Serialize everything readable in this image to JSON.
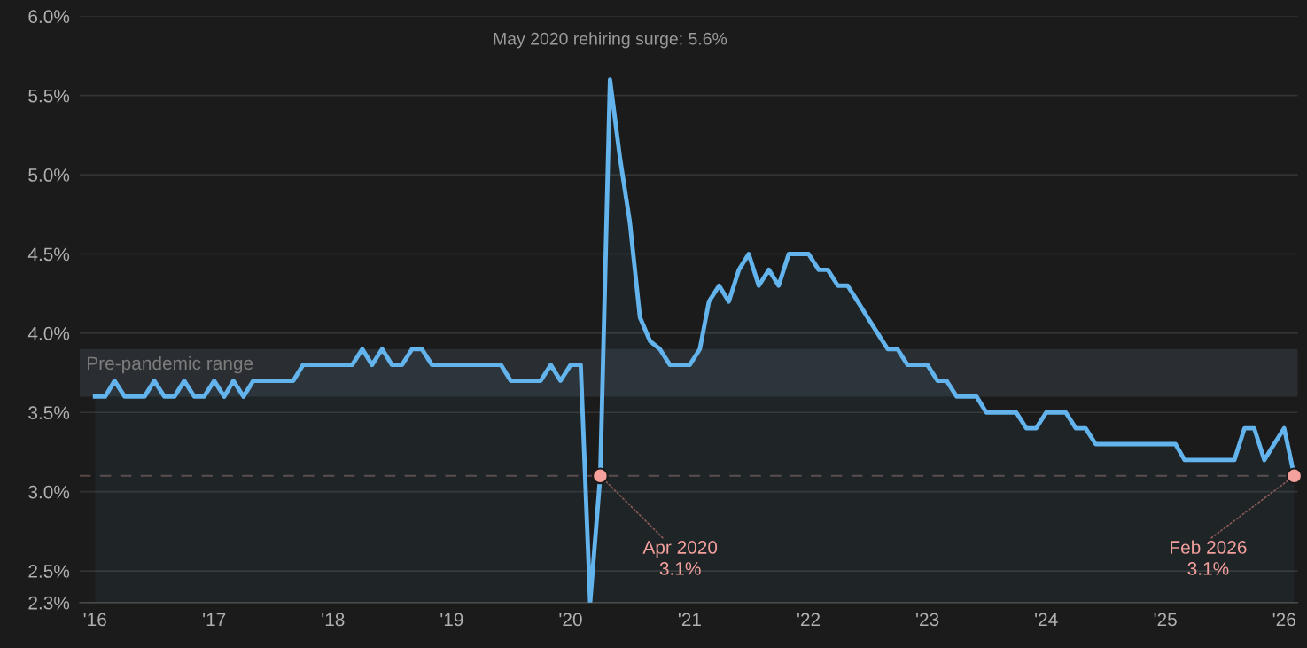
{
  "chart_data": {
    "type": "area",
    "x": [
      "2016-01",
      "2016-02",
      "2016-03",
      "2016-04",
      "2016-05",
      "2016-06",
      "2016-07",
      "2016-08",
      "2016-09",
      "2016-10",
      "2016-11",
      "2016-12",
      "2017-01",
      "2017-02",
      "2017-03",
      "2017-04",
      "2017-05",
      "2017-06",
      "2017-07",
      "2017-08",
      "2017-09",
      "2017-10",
      "2017-11",
      "2017-12",
      "2018-01",
      "2018-02",
      "2018-03",
      "2018-04",
      "2018-05",
      "2018-06",
      "2018-07",
      "2018-08",
      "2018-09",
      "2018-10",
      "2018-11",
      "2018-12",
      "2019-01",
      "2019-02",
      "2019-03",
      "2019-04",
      "2019-05",
      "2019-06",
      "2019-07",
      "2019-08",
      "2019-09",
      "2019-10",
      "2019-11",
      "2019-12",
      "2020-01",
      "2020-02",
      "2020-03",
      "2020-04",
      "2020-05",
      "2020-06",
      "2020-07",
      "2020-08",
      "2020-09",
      "2020-10",
      "2020-11",
      "2020-12",
      "2021-01",
      "2021-02",
      "2021-03",
      "2021-04",
      "2021-05",
      "2021-06",
      "2021-07",
      "2021-08",
      "2021-09",
      "2021-10",
      "2021-11",
      "2021-12",
      "2022-01",
      "2022-02",
      "2022-03",
      "2022-04",
      "2022-05",
      "2022-06",
      "2022-07",
      "2022-08",
      "2022-09",
      "2022-10",
      "2022-11",
      "2022-12",
      "2023-01",
      "2023-02",
      "2023-03",
      "2023-04",
      "2023-05",
      "2023-06",
      "2023-07",
      "2023-08",
      "2023-09",
      "2023-10",
      "2023-11",
      "2023-12",
      "2024-01",
      "2024-02",
      "2024-03",
      "2024-04",
      "2024-05",
      "2024-06",
      "2024-07",
      "2024-08",
      "2024-09",
      "2024-10",
      "2024-11",
      "2024-12",
      "2025-01",
      "2025-02",
      "2025-03",
      "2025-04",
      "2025-05",
      "2025-06",
      "2025-07",
      "2025-08",
      "2025-09",
      "2025-10",
      "2025-11",
      "2025-12",
      "2026-01",
      "2026-02"
    ],
    "series": [
      {
        "color": "#63b3ed",
        "values": [
          3.6,
          3.6,
          3.7,
          3.6,
          3.6,
          3.6,
          3.7,
          3.6,
          3.6,
          3.7,
          3.6,
          3.6,
          3.7,
          3.6,
          3.7,
          3.6,
          3.7,
          3.7,
          3.7,
          3.7,
          3.7,
          3.8,
          3.8,
          3.8,
          3.8,
          3.8,
          3.8,
          3.9,
          3.8,
          3.9,
          3.8,
          3.8,
          3.9,
          3.9,
          3.8,
          3.8,
          3.8,
          3.8,
          3.8,
          3.8,
          3.8,
          3.8,
          3.7,
          3.7,
          3.7,
          3.7,
          3.8,
          3.7,
          3.8,
          3.8,
          2.3,
          3.1,
          5.6,
          5.1,
          4.7,
          4.1,
          3.95,
          3.9,
          3.8,
          3.8,
          3.8,
          3.9,
          4.2,
          4.3,
          4.2,
          4.4,
          4.5,
          4.3,
          4.4,
          4.3,
          4.5,
          4.5,
          4.5,
          4.4,
          4.4,
          4.3,
          4.3,
          4.2,
          4.1,
          4.0,
          3.9,
          3.9,
          3.8,
          3.8,
          3.8,
          3.7,
          3.7,
          3.6,
          3.6,
          3.6,
          3.5,
          3.5,
          3.5,
          3.5,
          3.4,
          3.4,
          3.5,
          3.5,
          3.5,
          3.4,
          3.4,
          3.3,
          3.3,
          3.3,
          3.3,
          3.3,
          3.3,
          3.3,
          3.3,
          3.3,
          3.2,
          3.2,
          3.2,
          3.2,
          3.2,
          3.2,
          3.4,
          3.4,
          3.2,
          3.3,
          3.4,
          3.1
        ]
      }
    ],
    "xlim": [
      "2015-11-15",
      "2026-02-12"
    ],
    "xticks": [
      {
        "value": "2016-01-01",
        "label": "'16"
      },
      {
        "value": "2017-01-01",
        "label": "'17"
      },
      {
        "value": "2018-01-01",
        "label": "'18"
      },
      {
        "value": "2019-01-01",
        "label": "'19"
      },
      {
        "value": "2020-01-01",
        "label": "'20"
      },
      {
        "value": "2021-01-01",
        "label": "'21"
      },
      {
        "value": "2022-01-01",
        "label": "'22"
      },
      {
        "value": "2023-01-01",
        "label": "'23"
      },
      {
        "value": "2024-01-01",
        "label": "'24"
      },
      {
        "value": "2025-01-01",
        "label": "'25"
      },
      {
        "value": "2026-01-01",
        "label": "'26"
      }
    ],
    "ylim": [
      2.3,
      6.0
    ],
    "yticks": [
      {
        "value": 2.3,
        "label": "2.3%"
      },
      {
        "value": 2.5,
        "label": "2.5%"
      },
      {
        "value": 3.0,
        "label": "3.0%"
      },
      {
        "value": 3.5,
        "label": "3.5%"
      },
      {
        "value": 4.0,
        "label": "4.0%"
      },
      {
        "value": 4.5,
        "label": "4.5%"
      },
      {
        "value": 5.0,
        "label": "5.0%"
      },
      {
        "value": 5.5,
        "label": "5.5%"
      },
      {
        "value": 6.0,
        "label": "6.0%"
      }
    ],
    "grid": "y",
    "bands": [
      {
        "axis": "y",
        "from": 3.6,
        "to": 3.9,
        "label": "Pre-pandemic range",
        "color": "#2a2d31"
      }
    ],
    "ref_lines": [
      {
        "axis": "y",
        "value": 3.1,
        "color": "#5a4848",
        "line_style": "dashed"
      }
    ],
    "annotations": [
      {
        "text": "May 2020 rehiring surge: 5.6%",
        "x": "2020-05",
        "y": 5.6
      },
      {
        "text": "Apr 2020\n3.1%",
        "x": "2020-04",
        "y": 3.1
      },
      {
        "text": "Feb 2026\n3.1%",
        "x": "2026-02",
        "y": 3.1
      }
    ]
  }
}
